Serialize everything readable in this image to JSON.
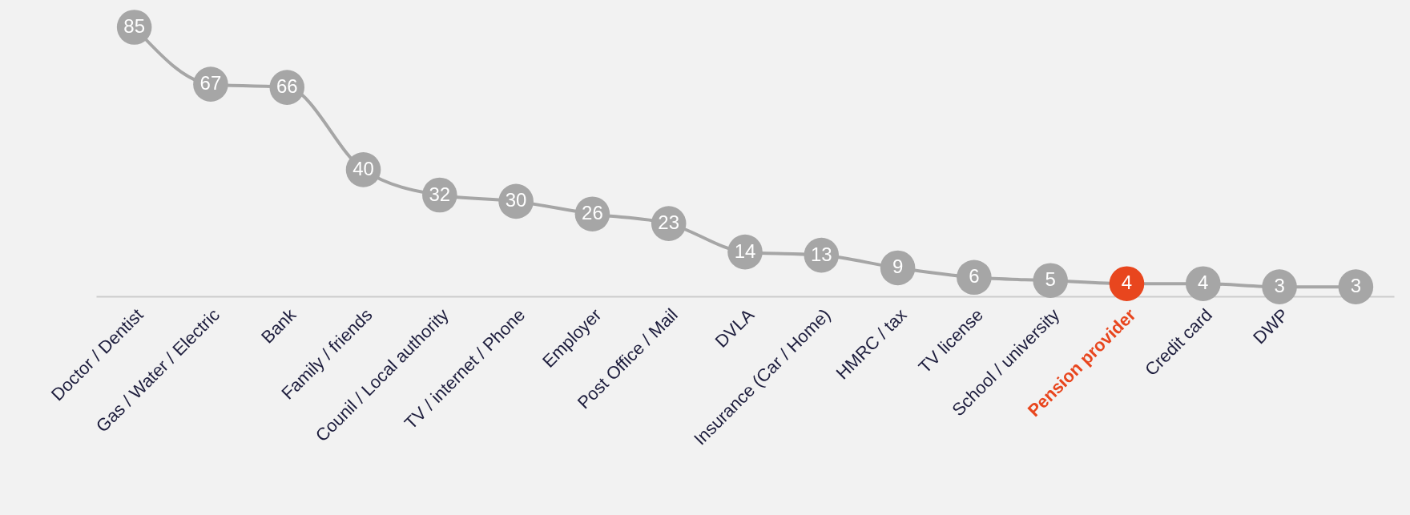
{
  "chart_data": {
    "type": "line",
    "categories": [
      "Doctor / Dentist",
      "Gas / Water / Electric",
      "Bank",
      "Family / friends",
      "Counil / Local authority",
      "TV / internet / Phone",
      "Employer",
      "Post Office / Mail",
      "DVLA",
      "Insurance (Car / Home)",
      "HMRC / tax",
      "TV license",
      "School / university",
      "Pension provider",
      "Credit card",
      "DWP",
      null
    ],
    "values": [
      85,
      67,
      66,
      40,
      32,
      30,
      26,
      23,
      14,
      13,
      9,
      6,
      5,
      4,
      4,
      3,
      3
    ],
    "color": "#a6a6a6",
    "colors": [
      "#a6a6a6",
      "#a6a6a6",
      "#a6a6a6",
      "#a6a6a6",
      "#a6a6a6",
      "#a6a6a6",
      "#a6a6a6",
      "#a6a6a6",
      "#a6a6a6",
      "#a6a6a6",
      "#a6a6a6",
      "#a6a6a6",
      "#a6a6a6",
      "#e8461e",
      "#a6a6a6",
      "#a6a6a6",
      "#a6a6a6"
    ],
    "marker": "circle",
    "data_labels": true,
    "grid": false,
    "legend": false
  }
}
